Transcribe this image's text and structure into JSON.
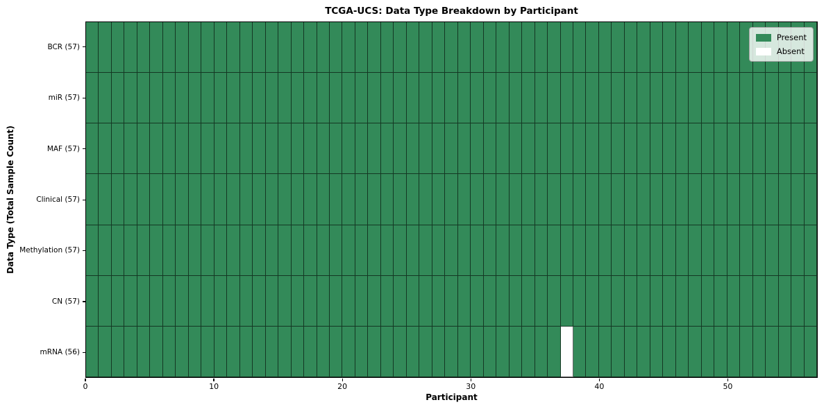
{
  "chart_data": {
    "type": "heatmap",
    "title": "TCGA-UCS: Data Type Breakdown by Participant",
    "xlabel": "Participant",
    "ylabel": "Data Type (Total Sample Count)",
    "x_range": [
      0,
      57
    ],
    "x_ticks": [
      0,
      10,
      20,
      30,
      40,
      50
    ],
    "n_participants": 57,
    "rows": [
      {
        "label": "BCR (57)",
        "data_type": "BCR",
        "present_count": 57,
        "absent_participants": []
      },
      {
        "label": "miR (57)",
        "data_type": "miR",
        "present_count": 57,
        "absent_participants": []
      },
      {
        "label": "MAF (57)",
        "data_type": "MAF",
        "present_count": 57,
        "absent_participants": []
      },
      {
        "label": "Clinical (57)",
        "data_type": "Clinical",
        "present_count": 57,
        "absent_participants": []
      },
      {
        "label": "Methylation (57)",
        "data_type": "Methylation",
        "present_count": 57,
        "absent_participants": []
      },
      {
        "label": "CN (57)",
        "data_type": "CN",
        "present_count": 57,
        "absent_participants": []
      },
      {
        "label": "mRNA (56)",
        "data_type": "mRNA",
        "present_count": 56,
        "absent_participants": [
          37
        ]
      }
    ],
    "legend": {
      "position": "upper right",
      "entries": [
        {
          "label": "Present",
          "color": "#338a59"
        },
        {
          "label": "Absent",
          "color": "#ffffff"
        }
      ]
    },
    "colors": {
      "present": "#338a59",
      "absent": "#ffffff",
      "grid_line": "rgba(0,0,0,0.6)",
      "frame": "#000000",
      "background": "#ffffff"
    }
  }
}
